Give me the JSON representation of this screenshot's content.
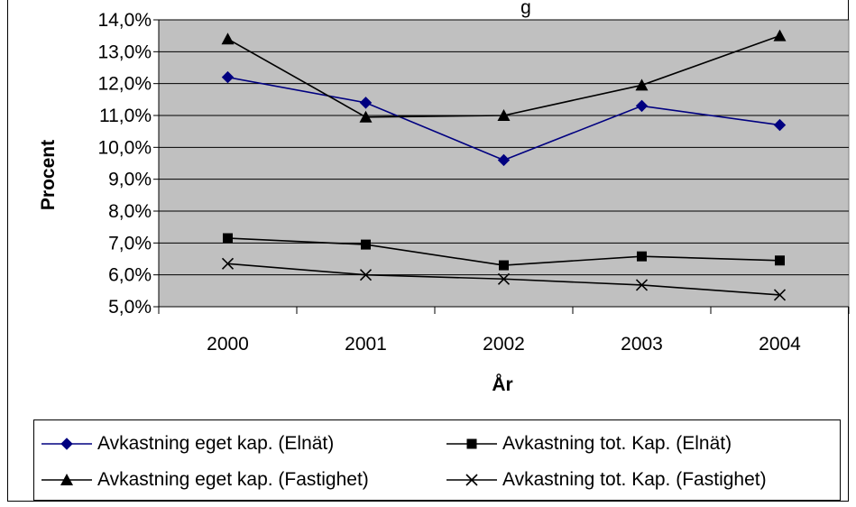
{
  "chart_data": {
    "type": "line",
    "title": "",
    "title_partial": "g",
    "xlabel": "År",
    "ylabel": "Procent",
    "categories": [
      "2000",
      "2001",
      "2002",
      "2003",
      "2004"
    ],
    "ylim": [
      0.05,
      0.14
    ],
    "yticks": [
      "5,0%",
      "6,0%",
      "7,0%",
      "8,0%",
      "9,0%",
      "10,0%",
      "11,0%",
      "12,0%",
      "13,0%",
      "14,0%"
    ],
    "plot_background": "#c0c0c0",
    "grid": "horizontal",
    "legend_position": "bottom",
    "series": [
      {
        "name": "Avkastning eget kap. (Elnät)",
        "values": [
          0.122,
          0.114,
          0.096,
          0.113,
          0.107
        ],
        "color": "#000080",
        "marker": "diamond"
      },
      {
        "name": "Avkastning tot. Kap. (Elnät)",
        "values": [
          0.0715,
          0.0695,
          0.063,
          0.0658,
          0.0645
        ],
        "color": "#000000",
        "marker": "square"
      },
      {
        "name": "Avkastning eget kap. (Fastighet)",
        "values": [
          0.134,
          0.1095,
          0.11,
          0.1195,
          0.135
        ],
        "color": "#000000",
        "marker": "triangle"
      },
      {
        "name": "Avkastning tot. Kap. (Fastighet)",
        "values": [
          0.0635,
          0.06,
          0.0587,
          0.0568,
          0.0537
        ],
        "color": "#000000",
        "marker": "x"
      }
    ]
  }
}
